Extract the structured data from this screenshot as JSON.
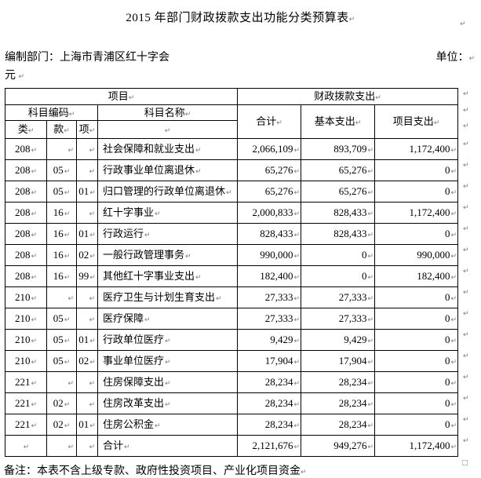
{
  "page": {
    "title": "2015 年部门财政拨款支出功能分类预算表",
    "prepared_by": "编制部门：上海市青浦区红十字会",
    "unit_label": "单位：",
    "unit_value": "元",
    "note": "备注：本表不含上级专款、政府性投资项目、产业化项目资金"
  },
  "marks": {
    "pilcrow": "↵",
    "anchor": "□"
  },
  "table": {
    "header": {
      "project": "项目",
      "fiscal": "财政拨款支出",
      "subject_code": "科目编码",
      "subject_name": "科目名称",
      "total": "合计",
      "basic": "基本支出",
      "project_exp": "项目支出",
      "cls": "类",
      "sec": "款",
      "item": "项"
    },
    "rows": [
      {
        "cls": "208",
        "sec": "",
        "item": "",
        "name": "社会保障和就业支出",
        "total": "2,066,109",
        "basic": "893,709",
        "project": "1,172,400"
      },
      {
        "cls": "208",
        "sec": "05",
        "item": "",
        "name": "行政事业单位离退休",
        "total": "65,276",
        "basic": "65,276",
        "project": "0"
      },
      {
        "cls": "208",
        "sec": "05",
        "item": "01",
        "name": "归口管理的行政单位离退休",
        "total": "65,276",
        "basic": "65,276",
        "project": "0"
      },
      {
        "cls": "208",
        "sec": "16",
        "item": "",
        "name": "红十字事业",
        "total": "2,000,833",
        "basic": "828,433",
        "project": "1,172,400"
      },
      {
        "cls": "208",
        "sec": "16",
        "item": "01",
        "name": "行政运行",
        "total": "828,433",
        "basic": "828,433",
        "project": "0"
      },
      {
        "cls": "208",
        "sec": "16",
        "item": "02",
        "name": "一般行政管理事务",
        "total": "990,000",
        "basic": "0",
        "project": "990,000"
      },
      {
        "cls": "208",
        "sec": "16",
        "item": "99",
        "name": "其他红十字事业支出",
        "total": "182,400",
        "basic": "0",
        "project": "182,400"
      },
      {
        "cls": "210",
        "sec": "",
        "item": "",
        "name": "医疗卫生与计划生育支出",
        "total": "27,333",
        "basic": "27,333",
        "project": "0"
      },
      {
        "cls": "210",
        "sec": "05",
        "item": "",
        "name": "医疗保障",
        "total": "27,333",
        "basic": "27,333",
        "project": "0"
      },
      {
        "cls": "210",
        "sec": "05",
        "item": "01",
        "name": "行政单位医疗",
        "total": "9,429",
        "basic": "9,429",
        "project": "0"
      },
      {
        "cls": "210",
        "sec": "05",
        "item": "02",
        "name": "事业单位医疗",
        "total": "17,904",
        "basic": "17,904",
        "project": "0"
      },
      {
        "cls": "221",
        "sec": "",
        "item": "",
        "name": "住房保障支出",
        "total": "28,234",
        "basic": "28,234",
        "project": "0"
      },
      {
        "cls": "221",
        "sec": "02",
        "item": "",
        "name": "住房改革支出",
        "total": "28,234",
        "basic": "28,234",
        "project": "0"
      },
      {
        "cls": "221",
        "sec": "02",
        "item": "01",
        "name": "住房公积金",
        "total": "28,234",
        "basic": "28,234",
        "project": "0"
      },
      {
        "cls": "",
        "sec": "",
        "item": "",
        "name": "合计",
        "total": "2,121,676",
        "basic": "949,276",
        "project": "1,172,400"
      }
    ]
  }
}
